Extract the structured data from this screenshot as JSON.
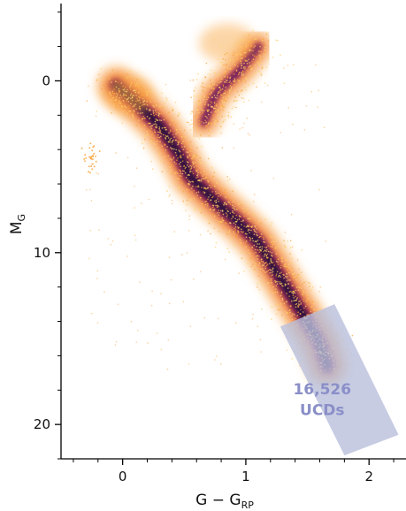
{
  "chart_data": {
    "type": "scatter",
    "title": "",
    "xlabel": {
      "main": "G − G",
      "sub": "RP"
    },
    "ylabel": {
      "main": "M",
      "sub": "G"
    },
    "xlim": [
      -0.5,
      2.3
    ],
    "ylim": [
      22,
      -4.5
    ],
    "y_inverted": true,
    "x_ticks": [
      0,
      1,
      2
    ],
    "x_tick_labels": [
      "0",
      "1",
      "2"
    ],
    "y_ticks": [
      0,
      10,
      20
    ],
    "y_tick_labels": [
      "0",
      "10",
      "20"
    ],
    "grid": false,
    "legend": "none",
    "colormap": [
      "#fcd16b",
      "#f9a43c",
      "#ef6f2a",
      "#c8402f",
      "#8b1e5a",
      "#521966",
      "#1e0f3a",
      "#000004"
    ],
    "series": [
      {
        "values": [
          {
            "x": -0.05,
            "y": 0.3,
            "density": 0.35
          },
          {
            "x": 0.1,
            "y": 1.2,
            "density": 0.45
          },
          {
            "x": 0.3,
            "y": 2.6,
            "density": 0.55
          },
          {
            "x": 0.45,
            "y": 4.2,
            "density": 0.85
          },
          {
            "x": 0.55,
            "y": 5.6,
            "density": 1.0
          },
          {
            "x": 0.75,
            "y": 7.0,
            "density": 0.95
          },
          {
            "x": 0.95,
            "y": 8.3,
            "density": 0.9
          },
          {
            "x": 1.1,
            "y": 9.4,
            "density": 1.0
          },
          {
            "x": 1.22,
            "y": 10.8,
            "density": 0.95
          },
          {
            "x": 1.35,
            "y": 12.3,
            "density": 0.8
          },
          {
            "x": 1.48,
            "y": 13.8,
            "density": 0.6
          },
          {
            "x": 1.6,
            "y": 15.3,
            "density": 0.45
          },
          {
            "x": 1.66,
            "y": 16.6,
            "density": 0.3
          },
          {
            "x": 0.66,
            "y": 2.4,
            "density": 0.75
          },
          {
            "x": 0.75,
            "y": 0.8,
            "density": 0.55
          },
          {
            "x": 0.95,
            "y": -0.6,
            "density": 0.45
          },
          {
            "x": 1.1,
            "y": -2.0,
            "density": 0.35
          },
          {
            "x": -0.25,
            "y": 4.3,
            "density": 0.25
          }
        ]
      }
    ],
    "annotations": [
      {
        "label": "16,526",
        "line2": "UCDs",
        "color": "#8a8fc8",
        "region_corners": [
          [
            1.28,
            14.3
          ],
          [
            1.72,
            13.0
          ],
          [
            2.24,
            20.6
          ],
          [
            1.8,
            21.8
          ]
        ],
        "region_color": "#b9bfdc"
      }
    ]
  }
}
